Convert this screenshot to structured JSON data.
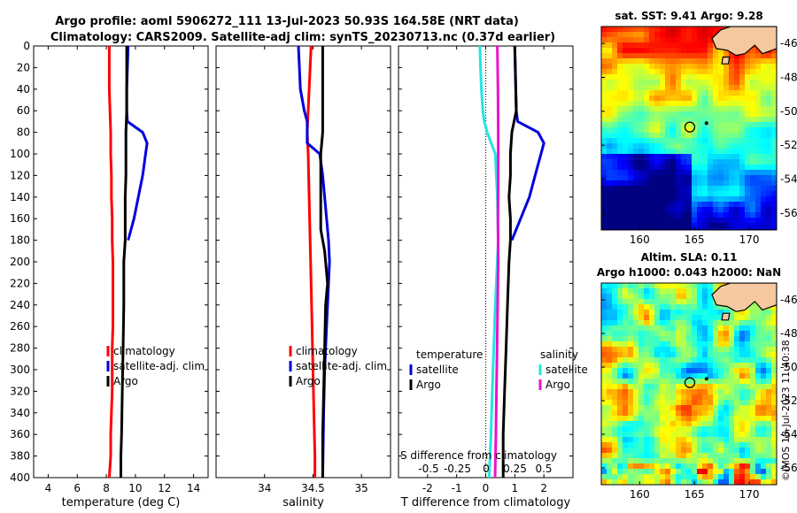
{
  "title": {
    "line1": "Argo profile: aoml 5906272_111 13-Jul-2023 50.93S 164.58E (NRT data)",
    "line2": "Climatology: CARS2009. Satellite-adj clim: synTS_20230713.nc (0.37d earlier)"
  },
  "watermark": "©IMOS 18-Jul-2023 11:40:38",
  "colors": {
    "climatology": "#ff0000",
    "satellite": "#0000dd",
    "argo": "#000000",
    "sal_sat": "#22e5e5",
    "sal_argo": "#ee11cc",
    "land": "#f5c8a0"
  },
  "chart_data": [
    {
      "type": "line",
      "name": "temperature-panel",
      "xlabel": "temperature (deg C)",
      "ylabel": "",
      "xlim": [
        3,
        15
      ],
      "ylim": [
        400,
        0
      ],
      "xticks": [
        "4",
        "6",
        "8",
        "10",
        "12",
        "14"
      ],
      "yticks": [
        "0",
        "20",
        "40",
        "60",
        "80",
        "100",
        "120",
        "140",
        "160",
        "180",
        "200",
        "220",
        "240",
        "260",
        "280",
        "300",
        "320",
        "340",
        "360",
        "380",
        "400"
      ],
      "series": [
        {
          "name": "climatology",
          "color": "#ff0000",
          "depth": [
            0,
            20,
            40,
            60,
            80,
            100,
            120,
            140,
            160,
            180,
            200,
            220,
            240,
            260,
            280,
            300,
            320,
            340,
            360,
            380,
            400
          ],
          "values": [
            8.2,
            8.2,
            8.2,
            8.25,
            8.3,
            8.3,
            8.35,
            8.35,
            8.4,
            8.4,
            8.45,
            8.45,
            8.45,
            8.45,
            8.4,
            8.4,
            8.4,
            8.35,
            8.3,
            8.3,
            8.2
          ]
        },
        {
          "name": "satellite-adj. clim",
          "color": "#0000dd",
          "depth": [
            0,
            20,
            40,
            60,
            70,
            80,
            90,
            100,
            120,
            140,
            160,
            170,
            180
          ],
          "values": [
            9.5,
            9.45,
            9.4,
            9.4,
            9.45,
            10.5,
            10.8,
            10.7,
            10.5,
            10.2,
            9.9,
            9.7,
            9.5
          ]
        },
        {
          "name": "Argo",
          "color": "#000000",
          "depth": [
            0,
            60,
            80,
            100,
            120,
            140,
            160,
            180,
            200,
            240,
            280,
            320,
            360,
            380,
            400
          ],
          "values": [
            9.4,
            9.4,
            9.35,
            9.35,
            9.35,
            9.3,
            9.3,
            9.3,
            9.2,
            9.2,
            9.15,
            9.1,
            9.05,
            9.0,
            9.0
          ]
        }
      ],
      "legend": [
        "climatology",
        "satellite-adj. clim",
        "Argo"
      ]
    },
    {
      "type": "line",
      "name": "salinity-panel",
      "xlabel": "salinity",
      "xlim": [
        33.5,
        35.3
      ],
      "ylim": [
        400,
        0
      ],
      "xticks": [
        "34",
        "34.5",
        "35"
      ],
      "series": [
        {
          "name": "climatology",
          "color": "#ff0000",
          "depth": [
            0,
            20,
            40,
            60,
            80,
            100,
            140,
            180,
            220,
            260,
            300,
            340,
            380,
            400
          ],
          "values": [
            34.48,
            34.47,
            34.46,
            34.45,
            34.44,
            34.45,
            34.46,
            34.47,
            34.48,
            34.49,
            34.5,
            34.51,
            34.52,
            34.52
          ]
        },
        {
          "name": "satellite-adj. clim",
          "color": "#0000dd",
          "depth": [
            0,
            20,
            40,
            60,
            70,
            80,
            90,
            100,
            120,
            140,
            160,
            180,
            200,
            220,
            260,
            300,
            340,
            400
          ],
          "values": [
            34.35,
            34.36,
            34.37,
            34.41,
            34.44,
            34.44,
            34.44,
            34.57,
            34.6,
            34.62,
            34.64,
            34.66,
            34.67,
            34.66,
            34.64,
            34.62,
            34.61,
            34.6
          ]
        },
        {
          "name": "Argo",
          "color": "#000000",
          "depth": [
            0,
            80,
            100,
            120,
            140,
            160,
            170,
            180,
            190,
            200,
            210,
            220,
            240,
            280,
            320,
            360,
            400
          ],
          "values": [
            34.6,
            34.6,
            34.58,
            34.58,
            34.58,
            34.58,
            34.58,
            34.6,
            34.62,
            34.63,
            34.64,
            34.65,
            34.63,
            34.62,
            34.61,
            34.6,
            34.6
          ]
        }
      ],
      "legend": [
        "climatology",
        "satellite-adj. clim",
        "Argo"
      ]
    },
    {
      "type": "line",
      "name": "difference-panel",
      "xlabel": "T difference from climatology",
      "toplabel": "S difference from climatology",
      "xlim": [
        -3,
        3
      ],
      "ylim": [
        400,
        0
      ],
      "xticks": [
        "-2",
        "-1",
        "0",
        "1",
        "2"
      ],
      "stop_ticks": [
        "-0.5",
        "-0.25",
        "0",
        "0.25",
        "0.5"
      ],
      "series": [
        {
          "name": "temperature satellite",
          "color": "#0000dd",
          "depth": [
            0,
            60,
            70,
            80,
            90,
            100,
            120,
            140,
            160,
            180
          ],
          "values": [
            1.0,
            1.05,
            1.1,
            1.8,
            2.0,
            1.9,
            1.7,
            1.5,
            1.2,
            0.9
          ]
        },
        {
          "name": "temperature Argo",
          "color": "#000000",
          "depth": [
            0,
            60,
            80,
            100,
            120,
            140,
            160,
            180,
            200,
            240,
            280,
            320,
            360,
            400
          ],
          "values": [
            1.0,
            1.05,
            0.9,
            0.85,
            0.85,
            0.8,
            0.85,
            0.85,
            0.8,
            0.75,
            0.7,
            0.65,
            0.6,
            0.6
          ]
        },
        {
          "name": "salinity satellite",
          "color": "#22e5e5",
          "depth": [
            0,
            20,
            40,
            60,
            70,
            80,
            100,
            140,
            180,
            240,
            300,
            360,
            400
          ],
          "values": [
            -0.2,
            -0.18,
            -0.15,
            -0.1,
            -0.05,
            0.05,
            0.33,
            0.4,
            0.43,
            0.33,
            0.25,
            0.18,
            0.12
          ]
        },
        {
          "name": "salinity Argo",
          "color": "#ee11cc",
          "depth": [
            0,
            40,
            80,
            120,
            160,
            200,
            240,
            280,
            320,
            360,
            400
          ],
          "values": [
            0.4,
            0.42,
            0.43,
            0.43,
            0.42,
            0.43,
            0.41,
            0.39,
            0.37,
            0.35,
            0.32
          ]
        }
      ],
      "legend_temperature_title": "temperature",
      "legend_salinity_title": "salinity",
      "legend": [
        "satellite",
        "Argo",
        "satellite",
        "Argo"
      ]
    },
    {
      "type": "heatmap",
      "name": "sst-map",
      "title": "sat. SST: 9.41 Argo: 9.28",
      "xticks": [
        "160",
        "165",
        "170"
      ],
      "yticks": [
        "-46",
        "-48",
        "-50",
        "-52",
        "-54",
        "-56"
      ],
      "xlim": [
        156.5,
        172.5
      ],
      "ylim": [
        -57,
        -45
      ],
      "argo_position": [
        164.58,
        -50.93
      ]
    },
    {
      "type": "heatmap",
      "name": "sla-map",
      "title": "Altim. SLA: 0.11",
      "subtitle": "Argo h1000: 0.043 h2000: NaN",
      "xticks": [
        "160",
        "165",
        "170"
      ],
      "yticks": [
        "-46",
        "-48",
        "-50",
        "-52",
        "-54",
        "-56"
      ],
      "xlim": [
        156.5,
        172.5
      ],
      "ylim": [
        -57,
        -45
      ],
      "argo_position": [
        164.58,
        -50.93
      ]
    }
  ]
}
